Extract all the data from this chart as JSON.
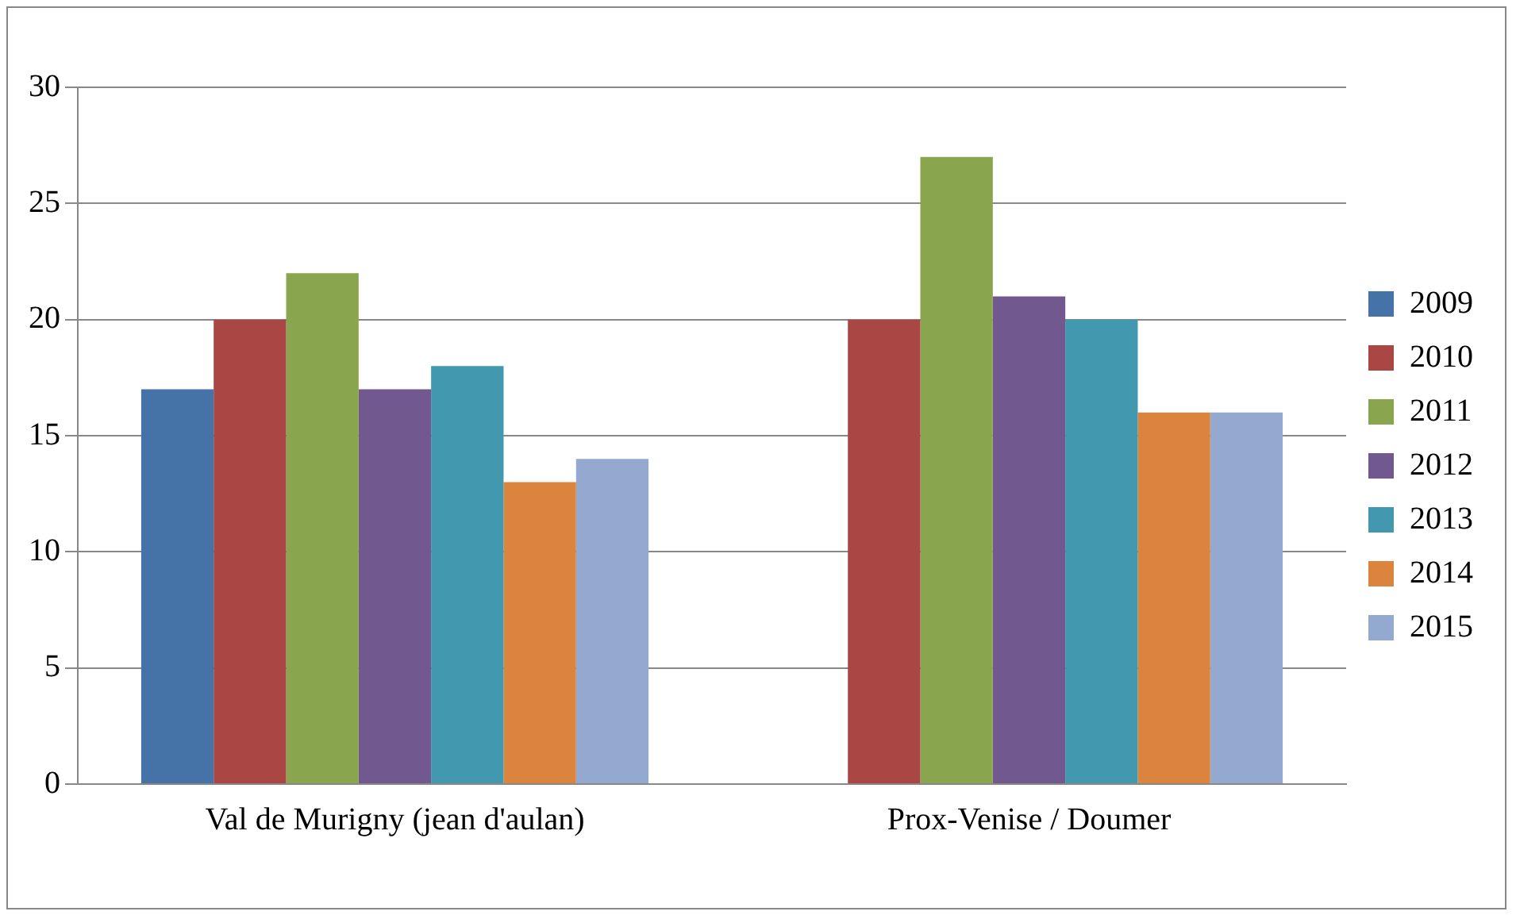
{
  "chart_data": {
    "type": "bar",
    "categories": [
      "Val de Murigny (jean d'aulan)",
      "Prox-Venise / Doumer"
    ],
    "series": [
      {
        "name": "2009",
        "color": "#4572a7",
        "values": [
          17,
          null
        ]
      },
      {
        "name": "2010",
        "color": "#aa4643",
        "values": [
          20,
          20
        ]
      },
      {
        "name": "2011",
        "color": "#89a54e",
        "values": [
          22,
          27
        ]
      },
      {
        "name": "2012",
        "color": "#71588f",
        "values": [
          17,
          21
        ]
      },
      {
        "name": "2013",
        "color": "#4198af",
        "values": [
          18,
          20
        ]
      },
      {
        "name": "2014",
        "color": "#db843d",
        "values": [
          13,
          16
        ]
      },
      {
        "name": "2015",
        "color": "#93a9cf",
        "values": [
          14,
          16
        ]
      }
    ],
    "ylim": [
      0,
      30
    ],
    "yticks": [
      0,
      5,
      10,
      15,
      20,
      25,
      30
    ],
    "grid": "y",
    "legend": "right"
  }
}
